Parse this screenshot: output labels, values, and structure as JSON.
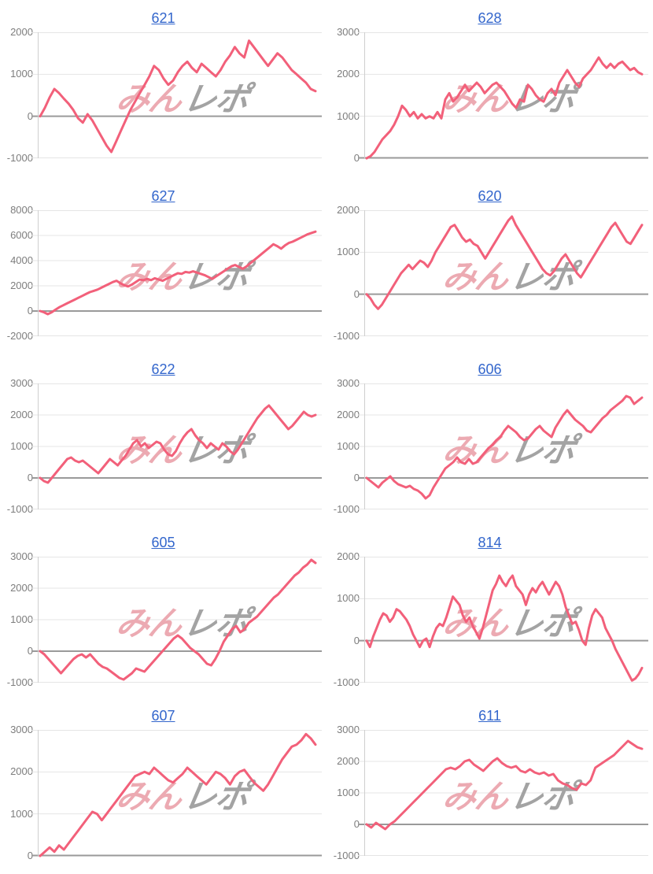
{
  "page": {
    "background": "#ffffff"
  },
  "colors": {
    "line": "#f2607a",
    "title_link": "#3366cc",
    "axis_label": "#7d7d7d",
    "gridline": "#e5e5e5",
    "zero_line": "#9a9a9a",
    "axis_line": "#cfcfcf",
    "watermark_pink": "#ecaab2",
    "watermark_gray": "#a3a3a3"
  },
  "watermark": {
    "pink_text": "みん",
    "gray_text": "レポ"
  },
  "chart_data": [
    {
      "type": "line",
      "title": "621",
      "ylim": [
        -1000,
        2000
      ],
      "yticks": [
        2000,
        1000,
        0,
        -1000
      ],
      "grid": true,
      "values": [
        0,
        200,
        450,
        650,
        550,
        420,
        300,
        150,
        -50,
        -150,
        50,
        -100,
        -300,
        -500,
        -700,
        -850,
        -600,
        -350,
        -100,
        150,
        350,
        550,
        750,
        950,
        1200,
        1100,
        900,
        750,
        850,
        1050,
        1200,
        1300,
        1150,
        1050,
        1250,
        1150,
        1050,
        950,
        1100,
        1300,
        1450,
        1650,
        1500,
        1400,
        1800,
        1650,
        1500,
        1350,
        1200,
        1350,
        1500,
        1400,
        1250,
        1100,
        1000,
        900,
        800,
        650,
        600
      ]
    },
    {
      "type": "line",
      "title": "628",
      "ylim": [
        0,
        3000
      ],
      "yticks": [
        3000,
        2000,
        1000,
        0
      ],
      "grid": true,
      "values": [
        0,
        50,
        150,
        300,
        450,
        550,
        650,
        800,
        1000,
        1250,
        1150,
        1000,
        1100,
        950,
        1050,
        950,
        1000,
        950,
        1100,
        950,
        1400,
        1550,
        1350,
        1450,
        1600,
        1750,
        1600,
        1700,
        1800,
        1700,
        1550,
        1650,
        1750,
        1800,
        1700,
        1600,
        1450,
        1300,
        1200,
        1400,
        1350,
        1750,
        1650,
        1500,
        1400,
        1350,
        1550,
        1650,
        1500,
        1800,
        1950,
        2100,
        1950,
        1800,
        1700,
        1900,
        2000,
        2100,
        2250,
        2400,
        2250,
        2150,
        2250,
        2150,
        2250,
        2300,
        2200,
        2100,
        2150,
        2050,
        2000
      ]
    },
    {
      "type": "line",
      "title": "627",
      "ylim": [
        -2000,
        8000
      ],
      "yticks": [
        8000,
        6000,
        4000,
        2000,
        0,
        -2000
      ],
      "grid": true,
      "values": [
        0,
        -100,
        -250,
        -100,
        100,
        300,
        450,
        600,
        750,
        900,
        1050,
        1200,
        1350,
        1500,
        1600,
        1700,
        1850,
        2000,
        2150,
        2300,
        2400,
        2200,
        2050,
        1950,
        2100,
        2300,
        2500,
        2450,
        2550,
        2450,
        2600,
        2500,
        2400,
        2550,
        2700,
        2850,
        3000,
        2950,
        3100,
        3050,
        3150,
        3050,
        2950,
        2850,
        2700,
        2550,
        2750,
        2950,
        3150,
        3350,
        3550,
        3650,
        3500,
        3350,
        3550,
        3800,
        4050,
        4300,
        4550,
        4800,
        5050,
        5300,
        5150,
        4950,
        5200,
        5400,
        5500,
        5650,
        5800,
        5950,
        6100,
        6200,
        6300
      ]
    },
    {
      "type": "line",
      "title": "620",
      "ylim": [
        -1000,
        2000
      ],
      "yticks": [
        2000,
        1000,
        0,
        -1000
      ],
      "grid": true,
      "values": [
        0,
        -100,
        -250,
        -350,
        -250,
        -100,
        50,
        200,
        350,
        500,
        600,
        700,
        600,
        700,
        800,
        750,
        650,
        800,
        1000,
        1150,
        1300,
        1450,
        1600,
        1650,
        1500,
        1350,
        1250,
        1300,
        1200,
        1150,
        1000,
        850,
        1000,
        1150,
        1300,
        1450,
        1600,
        1750,
        1850,
        1650,
        1500,
        1350,
        1200,
        1050,
        900,
        750,
        600,
        500,
        450,
        550,
        700,
        850,
        950,
        800,
        650,
        500,
        400,
        550,
        700,
        850,
        1000,
        1150,
        1300,
        1450,
        1600,
        1700,
        1550,
        1400,
        1250,
        1200,
        1350,
        1500,
        1650
      ]
    },
    {
      "type": "line",
      "title": "622",
      "ylim": [
        -1000,
        3000
      ],
      "yticks": [
        3000,
        2000,
        1000,
        0,
        -1000
      ],
      "grid": true,
      "values": [
        0,
        -100,
        -150,
        0,
        150,
        300,
        450,
        600,
        650,
        550,
        500,
        550,
        450,
        350,
        250,
        150,
        300,
        450,
        600,
        500,
        400,
        550,
        700,
        900,
        1100,
        1200,
        1000,
        1100,
        950,
        1050,
        1150,
        1100,
        900,
        750,
        700,
        850,
        1100,
        1300,
        1450,
        1550,
        1350,
        1200,
        1100,
        950,
        1100,
        1000,
        900,
        1100,
        1000,
        850,
        750,
        900,
        1100,
        1300,
        1500,
        1700,
        1900,
        2050,
        2200,
        2300,
        2150,
        2000,
        1850,
        1700,
        1550,
        1650,
        1800,
        1950,
        2100,
        2000,
        1950,
        2000
      ]
    },
    {
      "type": "line",
      "title": "606",
      "ylim": [
        -1000,
        3000
      ],
      "yticks": [
        3000,
        2000,
        1000,
        0,
        -1000
      ],
      "grid": true,
      "values": [
        0,
        -100,
        -200,
        -300,
        -150,
        -50,
        50,
        -100,
        -200,
        -250,
        -300,
        -250,
        -350,
        -400,
        -500,
        -650,
        -550,
        -300,
        -100,
        100,
        300,
        400,
        500,
        650,
        500,
        450,
        600,
        450,
        500,
        650,
        800,
        950,
        1050,
        1200,
        1300,
        1500,
        1650,
        1550,
        1450,
        1300,
        1200,
        1250,
        1400,
        1550,
        1650,
        1500,
        1400,
        1300,
        1600,
        1800,
        2000,
        2150,
        2000,
        1850,
        1750,
        1650,
        1500,
        1450,
        1600,
        1750,
        1900,
        2000,
        2150,
        2250,
        2350,
        2450,
        2600,
        2550,
        2350,
        2450,
        2550
      ]
    },
    {
      "type": "line",
      "title": "605",
      "ylim": [
        -1000,
        3000
      ],
      "yticks": [
        3000,
        2000,
        1000,
        0,
        -1000
      ],
      "grid": true,
      "values": [
        0,
        -100,
        -250,
        -400,
        -550,
        -700,
        -550,
        -400,
        -250,
        -150,
        -100,
        -200,
        -100,
        -250,
        -400,
        -500,
        -550,
        -650,
        -750,
        -850,
        -900,
        -800,
        -700,
        -550,
        -600,
        -650,
        -500,
        -350,
        -200,
        -50,
        100,
        250,
        400,
        500,
        400,
        250,
        100,
        0,
        -100,
        -250,
        -400,
        -450,
        -250,
        0,
        300,
        500,
        700,
        800,
        600,
        700,
        900,
        1000,
        1100,
        1250,
        1400,
        1550,
        1700,
        1800,
        1950,
        2100,
        2250,
        2400,
        2500,
        2650,
        2750,
        2900,
        2800
      ]
    },
    {
      "type": "line",
      "title": "814",
      "ylim": [
        -1000,
        2000
      ],
      "yticks": [
        2000,
        1000,
        0,
        -1000
      ],
      "grid": true,
      "values": [
        0,
        -150,
        100,
        300,
        500,
        650,
        600,
        450,
        550,
        750,
        700,
        600,
        500,
        350,
        150,
        0,
        -150,
        0,
        50,
        -150,
        100,
        300,
        400,
        350,
        550,
        800,
        1050,
        950,
        850,
        600,
        450,
        550,
        350,
        200,
        50,
        300,
        600,
        900,
        1200,
        1350,
        1550,
        1400,
        1300,
        1450,
        1550,
        1300,
        1200,
        1100,
        850,
        1100,
        1250,
        1150,
        1300,
        1400,
        1250,
        1100,
        1250,
        1400,
        1300,
        1100,
        800,
        600,
        400,
        450,
        250,
        0,
        -100,
        300,
        600,
        750,
        650,
        550,
        300,
        150,
        0,
        -200,
        -350,
        -500,
        -650,
        -800,
        -950,
        -900,
        -800,
        -650
      ]
    },
    {
      "type": "line",
      "title": "607",
      "ylim": [
        0,
        3000
      ],
      "yticks": [
        3000,
        2000,
        1000,
        0
      ],
      "grid": true,
      "values": [
        0,
        100,
        200,
        100,
        250,
        150,
        300,
        450,
        600,
        750,
        900,
        1050,
        1000,
        850,
        1000,
        1150,
        1300,
        1450,
        1600,
        1750,
        1900,
        1950,
        2000,
        1950,
        2100,
        2000,
        1900,
        1800,
        1750,
        1850,
        1950,
        2100,
        2000,
        1900,
        1800,
        1700,
        1850,
        2000,
        1950,
        1850,
        1700,
        1900,
        2000,
        2050,
        1900,
        1750,
        1650,
        1550,
        1700,
        1900,
        2100,
        2300,
        2450,
        2600,
        2650,
        2750,
        2900,
        2800,
        2650
      ]
    },
    {
      "type": "line",
      "title": "611",
      "ylim": [
        -1000,
        3000
      ],
      "yticks": [
        3000,
        2000,
        1000,
        0,
        -1000
      ],
      "grid": true,
      "values": [
        0,
        -100,
        50,
        -50,
        -150,
        0,
        100,
        250,
        400,
        550,
        700,
        850,
        1000,
        1150,
        1300,
        1450,
        1600,
        1750,
        1800,
        1750,
        1850,
        2000,
        2050,
        1900,
        1800,
        1700,
        1850,
        2000,
        2100,
        1950,
        1850,
        1800,
        1850,
        1700,
        1650,
        1750,
        1650,
        1600,
        1650,
        1550,
        1600,
        1400,
        1300,
        1250,
        1150,
        1100,
        1300,
        1250,
        1400,
        1800,
        1900,
        2000,
        2100,
        2200,
        2350,
        2500,
        2650,
        2550,
        2450,
        2400
      ]
    }
  ]
}
